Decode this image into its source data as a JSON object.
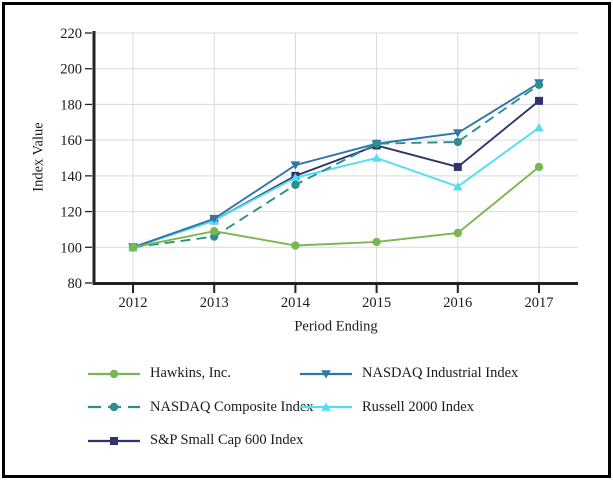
{
  "chart_data": {
    "type": "line",
    "title": "",
    "xlabel": "Period Ending",
    "ylabel": "Index Value",
    "categories": [
      "2012",
      "2013",
      "2014",
      "2015",
      "2016",
      "2017"
    ],
    "yticks": [
      80,
      100,
      120,
      140,
      160,
      180,
      200,
      220
    ],
    "ylim": [
      80,
      220
    ],
    "grid": true,
    "legend_position": "bottom",
    "axis_color": "#222222",
    "gridline_color": "#d9d9d9",
    "series": [
      {
        "name": "S&P Small Cap 600 Index",
        "color": "#313469",
        "marker": "square",
        "line": "solid",
        "values": [
          100,
          115,
          140,
          157,
          145,
          182
        ]
      },
      {
        "name": "Russell 2000 Index",
        "color": "#50def2",
        "marker": "triangle-up",
        "line": "solid",
        "values": [
          100,
          115,
          139,
          150,
          134,
          167
        ]
      },
      {
        "name": "NASDAQ Industrial Index",
        "color": "#2f75a9",
        "marker": "triangle-down",
        "line": "solid",
        "values": [
          100,
          116,
          146,
          158,
          164,
          192
        ]
      },
      {
        "name": "NASDAQ Composite Index",
        "color": "#2d8e8e",
        "marker": "circle",
        "line": "dashed",
        "values": [
          100,
          106,
          135,
          158,
          159,
          191
        ]
      },
      {
        "name": "Hawkins, Inc.",
        "color": "#79b752",
        "marker": "circle",
        "line": "solid",
        "values": [
          100,
          109,
          101,
          103,
          108,
          145
        ]
      }
    ],
    "legend_order": [
      4,
      2,
      3,
      1,
      0
    ]
  }
}
